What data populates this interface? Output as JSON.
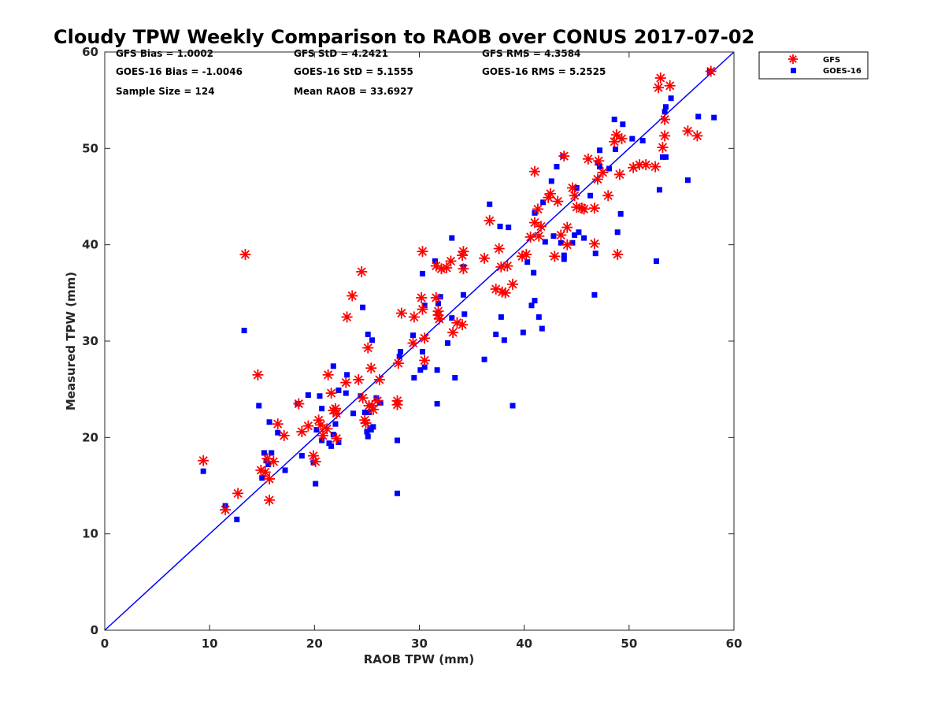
{
  "chart_data": {
    "type": "scatter",
    "title": "Cloudy TPW Weekly Comparison to RAOB over CONUS 2017-07-02",
    "xlabel": "RAOB TPW (mm)",
    "ylabel": "Measured TPW (mm)",
    "xlim": [
      0,
      60
    ],
    "ylim": [
      0,
      60
    ],
    "xticks": [
      "0",
      "10",
      "20",
      "30",
      "40",
      "50",
      "60"
    ],
    "yticks": [
      "0",
      "10",
      "20",
      "30",
      "40",
      "50",
      "60"
    ],
    "grid": false,
    "legend_position": "outside-top-right",
    "reference_line": {
      "from": [
        0,
        0
      ],
      "to": [
        60,
        60
      ],
      "color": "#0000ff"
    },
    "stats": {
      "gfs_bias": "GFS Bias = 1.0002",
      "goes_bias": "GOES-16 Bias = -1.0046",
      "sample_size": "Sample Size = 124",
      "gfs_std": "GFS StD = 4.2421",
      "goes_std": "GOES-16 StD = 5.1555",
      "mean_raob": "Mean RAOB = 33.6927",
      "gfs_rms": "GFS RMS = 4.3584",
      "goes_rms": "GOES-16 RMS = 5.2525"
    },
    "series": [
      {
        "name": "GFS",
        "marker": "asterisk",
        "color": "#ff0000",
        "points": [
          [
            9.4,
            17.6
          ],
          [
            11.5,
            12.5
          ],
          [
            12.7,
            14.2
          ],
          [
            13.4,
            39.0
          ],
          [
            14.6,
            26.5
          ],
          [
            14.9,
            16.6
          ],
          [
            15.3,
            16.4
          ],
          [
            15.5,
            17.8
          ],
          [
            15.7,
            13.5
          ],
          [
            15.7,
            15.7
          ],
          [
            16.1,
            17.5
          ],
          [
            16.5,
            21.4
          ],
          [
            17.1,
            20.2
          ],
          [
            18.5,
            23.5
          ],
          [
            18.8,
            20.6
          ],
          [
            19.4,
            21.2
          ],
          [
            19.9,
            18.1
          ],
          [
            20.1,
            17.5
          ],
          [
            20.4,
            21.8
          ],
          [
            20.6,
            21.3
          ],
          [
            20.8,
            20.2
          ],
          [
            21.2,
            20.9
          ],
          [
            21.3,
            26.5
          ],
          [
            21.6,
            24.6
          ],
          [
            21.8,
            22.8
          ],
          [
            22.0,
            23.0
          ],
          [
            22.1,
            22.5
          ],
          [
            22.1,
            19.9
          ],
          [
            23.0,
            25.7
          ],
          [
            23.1,
            32.5
          ],
          [
            23.6,
            34.7
          ],
          [
            24.2,
            26.0
          ],
          [
            24.5,
            37.2
          ],
          [
            24.6,
            24.1
          ],
          [
            24.8,
            21.8
          ],
          [
            24.9,
            21.5
          ],
          [
            25.1,
            29.3
          ],
          [
            25.2,
            23.3
          ],
          [
            25.4,
            27.2
          ],
          [
            25.5,
            23.3
          ],
          [
            25.6,
            22.9
          ],
          [
            26.0,
            23.8
          ],
          [
            26.2,
            26.0
          ],
          [
            27.9,
            23.8
          ],
          [
            27.9,
            23.4
          ],
          [
            28.0,
            27.7
          ],
          [
            28.3,
            32.9
          ],
          [
            29.5,
            32.5
          ],
          [
            29.4,
            29.8
          ],
          [
            30.2,
            34.5
          ],
          [
            30.3,
            39.3
          ],
          [
            30.3,
            33.3
          ],
          [
            30.5,
            28.0
          ],
          [
            30.5,
            30.3
          ],
          [
            31.6,
            37.8
          ],
          [
            31.6,
            34.5
          ],
          [
            31.8,
            32.7
          ],
          [
            31.8,
            33.1
          ],
          [
            31.9,
            32.3
          ],
          [
            32.1,
            37.5
          ],
          [
            32.6,
            37.6
          ],
          [
            33.0,
            38.3
          ],
          [
            33.2,
            30.9
          ],
          [
            33.6,
            31.9
          ],
          [
            34.1,
            31.7
          ],
          [
            34.1,
            38.9
          ],
          [
            34.2,
            39.3
          ],
          [
            34.2,
            37.5
          ],
          [
            36.2,
            38.6
          ],
          [
            36.7,
            42.5
          ],
          [
            37.3,
            35.4
          ],
          [
            37.6,
            39.6
          ],
          [
            37.8,
            37.7
          ],
          [
            37.9,
            35.1
          ],
          [
            38.2,
            35.0
          ],
          [
            38.4,
            37.8
          ],
          [
            38.9,
            35.9
          ],
          [
            39.8,
            38.8
          ],
          [
            40.2,
            39.0
          ],
          [
            40.6,
            40.8
          ],
          [
            41.0,
            42.3
          ],
          [
            41.0,
            47.6
          ],
          [
            41.3,
            43.7
          ],
          [
            41.4,
            40.9
          ],
          [
            41.6,
            41.9
          ],
          [
            42.3,
            44.9
          ],
          [
            42.5,
            45.3
          ],
          [
            42.9,
            38.8
          ],
          [
            43.2,
            44.5
          ],
          [
            43.5,
            41.0
          ],
          [
            43.8,
            49.2
          ],
          [
            44.1,
            41.8
          ],
          [
            44.1,
            40.0
          ],
          [
            44.6,
            45.9
          ],
          [
            44.8,
            45.1
          ],
          [
            45.0,
            43.9
          ],
          [
            45.5,
            43.8
          ],
          [
            45.7,
            43.7
          ],
          [
            46.1,
            48.9
          ],
          [
            46.7,
            43.8
          ],
          [
            46.7,
            40.1
          ],
          [
            47.0,
            46.8
          ],
          [
            47.1,
            48.7
          ],
          [
            47.5,
            47.5
          ],
          [
            48.0,
            45.1
          ],
          [
            48.6,
            50.7
          ],
          [
            48.8,
            51.4
          ],
          [
            48.9,
            39.0
          ],
          [
            49.1,
            47.3
          ],
          [
            49.3,
            51.0
          ],
          [
            50.4,
            48.0
          ],
          [
            51.0,
            48.3
          ],
          [
            51.6,
            48.3
          ],
          [
            52.5,
            48.1
          ],
          [
            52.8,
            56.3
          ],
          [
            53.0,
            57.3
          ],
          [
            53.2,
            50.1
          ],
          [
            53.4,
            51.3
          ],
          [
            53.4,
            53.0
          ],
          [
            53.9,
            56.5
          ],
          [
            55.6,
            51.8
          ],
          [
            56.5,
            51.3
          ],
          [
            57.8,
            58.0
          ]
        ]
      },
      {
        "name": "GOES-16",
        "marker": "square",
        "color": "#0000ff",
        "points": [
          [
            9.4,
            16.5
          ],
          [
            11.5,
            12.9
          ],
          [
            12.6,
            11.5
          ],
          [
            13.3,
            31.1
          ],
          [
            14.7,
            23.3
          ],
          [
            15.0,
            15.8
          ],
          [
            15.2,
            18.4
          ],
          [
            15.4,
            17.6
          ],
          [
            15.6,
            17.2
          ],
          [
            15.7,
            21.6
          ],
          [
            15.9,
            18.4
          ],
          [
            16.5,
            20.5
          ],
          [
            17.2,
            16.6
          ],
          [
            18.4,
            23.5
          ],
          [
            18.8,
            18.1
          ],
          [
            19.4,
            24.4
          ],
          [
            19.9,
            17.4
          ],
          [
            20.1,
            15.2
          ],
          [
            20.2,
            20.8
          ],
          [
            20.5,
            24.3
          ],
          [
            20.7,
            19.7
          ],
          [
            20.7,
            23.0
          ],
          [
            21.4,
            19.4
          ],
          [
            21.6,
            19.1
          ],
          [
            21.8,
            27.4
          ],
          [
            21.8,
            20.3
          ],
          [
            22.0,
            21.4
          ],
          [
            22.3,
            24.9
          ],
          [
            22.3,
            19.5
          ],
          [
            23.0,
            24.6
          ],
          [
            23.1,
            26.5
          ],
          [
            23.7,
            22.5
          ],
          [
            24.4,
            24.3
          ],
          [
            24.6,
            33.5
          ],
          [
            24.8,
            22.6
          ],
          [
            25.0,
            20.6
          ],
          [
            25.1,
            20.1
          ],
          [
            25.1,
            30.7
          ],
          [
            25.2,
            22.6
          ],
          [
            25.3,
            21.0
          ],
          [
            25.4,
            20.8
          ],
          [
            25.5,
            30.1
          ],
          [
            25.6,
            21.1
          ],
          [
            25.9,
            24.1
          ],
          [
            26.3,
            23.6
          ],
          [
            27.9,
            19.7
          ],
          [
            27.9,
            14.2
          ],
          [
            28.1,
            28.4
          ],
          [
            28.2,
            28.9
          ],
          [
            29.4,
            30.6
          ],
          [
            29.5,
            26.2
          ],
          [
            30.1,
            27.0
          ],
          [
            30.3,
            37.0
          ],
          [
            30.3,
            28.9
          ],
          [
            30.5,
            33.7
          ],
          [
            30.5,
            27.3
          ],
          [
            31.5,
            38.3
          ],
          [
            31.7,
            23.5
          ],
          [
            31.7,
            27.0
          ],
          [
            31.8,
            33.9
          ],
          [
            32.0,
            34.6
          ],
          [
            32.7,
            29.8
          ],
          [
            33.1,
            40.7
          ],
          [
            33.1,
            32.4
          ],
          [
            33.4,
            26.2
          ],
          [
            34.2,
            37.7
          ],
          [
            34.2,
            34.8
          ],
          [
            34.3,
            32.8
          ],
          [
            36.2,
            28.1
          ],
          [
            36.7,
            44.2
          ],
          [
            37.3,
            30.7
          ],
          [
            37.7,
            41.9
          ],
          [
            37.8,
            32.5
          ],
          [
            38.1,
            30.1
          ],
          [
            38.5,
            41.8
          ],
          [
            38.9,
            23.3
          ],
          [
            39.9,
            30.9
          ],
          [
            40.3,
            38.2
          ],
          [
            40.7,
            33.7
          ],
          [
            40.9,
            37.1
          ],
          [
            41.0,
            34.2
          ],
          [
            41.0,
            43.3
          ],
          [
            41.4,
            32.5
          ],
          [
            41.7,
            31.3
          ],
          [
            41.8,
            44.4
          ],
          [
            42.0,
            40.3
          ],
          [
            42.6,
            46.6
          ],
          [
            42.8,
            40.9
          ],
          [
            43.1,
            48.1
          ],
          [
            43.5,
            40.2
          ],
          [
            43.7,
            49.2
          ],
          [
            43.8,
            38.5
          ],
          [
            43.8,
            38.9
          ],
          [
            44.6,
            40.2
          ],
          [
            44.8,
            41.0
          ],
          [
            45.0,
            45.9
          ],
          [
            45.2,
            41.3
          ],
          [
            45.7,
            40.7
          ],
          [
            46.3,
            45.1
          ],
          [
            46.8,
            39.1
          ],
          [
            46.7,
            34.8
          ],
          [
            47.0,
            48.5
          ],
          [
            47.2,
            48.1
          ],
          [
            47.2,
            49.8
          ],
          [
            48.1,
            47.9
          ],
          [
            48.6,
            53.0
          ],
          [
            48.7,
            49.9
          ],
          [
            48.9,
            41.3
          ],
          [
            49.2,
            43.2
          ],
          [
            49.4,
            52.5
          ],
          [
            50.3,
            51.0
          ],
          [
            51.3,
            50.8
          ],
          [
            52.6,
            38.3
          ],
          [
            52.9,
            45.7
          ],
          [
            53.2,
            49.1
          ],
          [
            53.5,
            49.1
          ],
          [
            53.4,
            53.8
          ],
          [
            53.5,
            54.3
          ],
          [
            54.0,
            55.2
          ],
          [
            55.6,
            46.7
          ],
          [
            56.6,
            53.3
          ],
          [
            57.7,
            58.0
          ],
          [
            58.1,
            53.2
          ]
        ]
      }
    ]
  }
}
